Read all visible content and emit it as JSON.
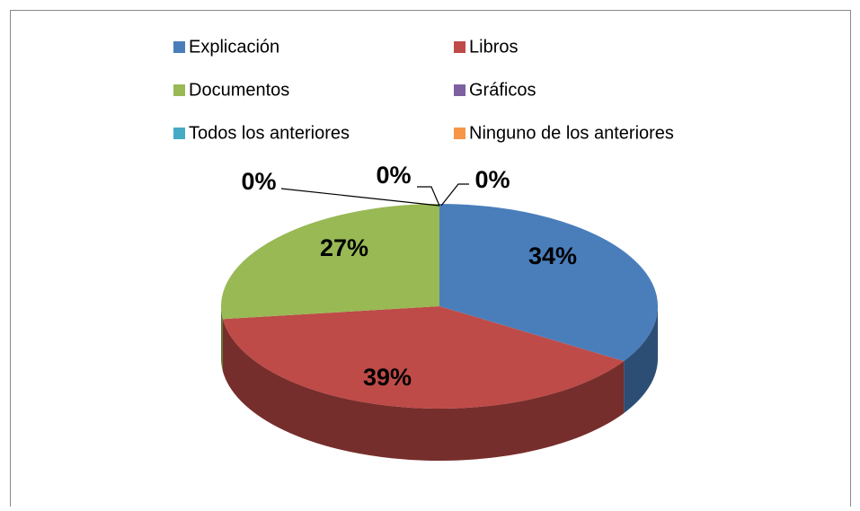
{
  "chart_data": {
    "type": "pie",
    "categories": [
      "Explicación",
      "Libros",
      "Documentos",
      "Gráficos",
      "Todos los anteriores",
      "Ninguno de los anteriores"
    ],
    "values": [
      34,
      39,
      27,
      0,
      0,
      0
    ],
    "value_labels": [
      "34%",
      "39%",
      "27%",
      "0%",
      "0%",
      "0%"
    ],
    "colors": [
      "#4a7ebb",
      "#be4b48",
      "#98b954",
      "#7d60a0",
      "#46aac5",
      "#f79646"
    ],
    "legend": "top"
  }
}
